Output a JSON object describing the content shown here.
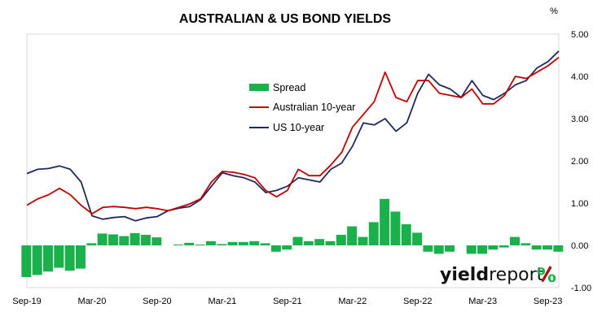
{
  "chart_data": {
    "type": "line",
    "title": "AUSTRALIAN & US BOND YIELDS",
    "y_unit_label": "%",
    "ylim": [
      -1.0,
      5.0
    ],
    "y_ticks": [
      "5.00",
      "4.00",
      "3.00",
      "2.00",
      "1.00",
      "0.00",
      "-1.00"
    ],
    "x_ticks": [
      "Sep-19",
      "Mar-20",
      "Sep-20",
      "Mar-21",
      "Sep-21",
      "Mar-22",
      "Sep-22",
      "Mar-23",
      "Sep-23"
    ],
    "xlim": [
      "2019-09",
      "2023-10"
    ],
    "legend": {
      "placement": "upper-left-center",
      "entries": [
        "Spread",
        "Australian 10-year",
        "US 10-year"
      ]
    },
    "series": [
      {
        "name": "Australian 10-year",
        "color": "#c00000",
        "x": [
          "2019-09",
          "2019-10",
          "2019-11",
          "2019-12",
          "2020-01",
          "2020-02",
          "2020-03",
          "2020-04",
          "2020-05",
          "2020-06",
          "2020-07",
          "2020-08",
          "2020-09",
          "2020-10",
          "2020-11",
          "2020-12",
          "2021-01",
          "2021-02",
          "2021-03",
          "2021-04",
          "2021-05",
          "2021-06",
          "2021-07",
          "2021-08",
          "2021-09",
          "2021-10",
          "2021-11",
          "2021-12",
          "2022-01",
          "2022-02",
          "2022-03",
          "2022-04",
          "2022-05",
          "2022-06",
          "2022-07",
          "2022-08",
          "2022-09",
          "2022-10",
          "2022-11",
          "2022-12",
          "2023-01",
          "2023-02",
          "2023-03",
          "2023-04",
          "2023-05",
          "2023-06",
          "2023-07",
          "2023-08",
          "2023-09",
          "2023-10"
        ],
        "values": [
          0.95,
          1.1,
          1.2,
          1.35,
          1.2,
          0.95,
          0.75,
          0.9,
          0.92,
          0.9,
          0.87,
          0.9,
          0.87,
          0.82,
          0.9,
          0.98,
          1.1,
          1.5,
          1.75,
          1.73,
          1.68,
          1.6,
          1.3,
          1.15,
          1.3,
          1.8,
          1.65,
          1.65,
          1.9,
          2.2,
          2.8,
          3.1,
          3.4,
          4.1,
          3.5,
          3.4,
          3.9,
          3.9,
          3.6,
          3.55,
          3.5,
          3.7,
          3.35,
          3.35,
          3.55,
          4.0,
          3.95,
          4.1,
          4.25,
          4.45
        ]
      },
      {
        "name": "US 10-year",
        "color": "#1f2a5a",
        "x": [
          "2019-09",
          "2019-10",
          "2019-11",
          "2019-12",
          "2020-01",
          "2020-02",
          "2020-03",
          "2020-04",
          "2020-05",
          "2020-06",
          "2020-07",
          "2020-08",
          "2020-09",
          "2020-10",
          "2020-11",
          "2020-12",
          "2021-01",
          "2021-02",
          "2021-03",
          "2021-04",
          "2021-05",
          "2021-06",
          "2021-07",
          "2021-08",
          "2021-09",
          "2021-10",
          "2021-11",
          "2021-12",
          "2022-01",
          "2022-02",
          "2022-03",
          "2022-04",
          "2022-05",
          "2022-06",
          "2022-07",
          "2022-08",
          "2022-09",
          "2022-10",
          "2022-11",
          "2022-12",
          "2023-01",
          "2023-02",
          "2023-03",
          "2023-04",
          "2023-05",
          "2023-06",
          "2023-07",
          "2023-08",
          "2023-09",
          "2023-10"
        ],
        "values": [
          1.7,
          1.8,
          1.82,
          1.88,
          1.8,
          1.5,
          0.7,
          0.62,
          0.66,
          0.68,
          0.58,
          0.65,
          0.68,
          0.82,
          0.88,
          0.92,
          1.08,
          1.4,
          1.72,
          1.65,
          1.6,
          1.5,
          1.25,
          1.3,
          1.4,
          1.6,
          1.55,
          1.5,
          1.8,
          1.95,
          2.35,
          2.9,
          2.85,
          3.0,
          2.7,
          2.9,
          3.6,
          4.05,
          3.8,
          3.7,
          3.5,
          3.9,
          3.55,
          3.45,
          3.6,
          3.8,
          3.9,
          4.2,
          4.35,
          4.6
        ]
      },
      {
        "name": "Spread",
        "type": "bar",
        "color": "#1ab04c",
        "x": [
          "2019-09",
          "2019-10",
          "2019-11",
          "2019-12",
          "2020-01",
          "2020-02",
          "2020-03",
          "2020-04",
          "2020-05",
          "2020-06",
          "2020-07",
          "2020-08",
          "2020-09",
          "2020-10",
          "2020-11",
          "2020-12",
          "2021-01",
          "2021-02",
          "2021-03",
          "2021-04",
          "2021-05",
          "2021-06",
          "2021-07",
          "2021-08",
          "2021-09",
          "2021-10",
          "2021-11",
          "2021-12",
          "2022-01",
          "2022-02",
          "2022-03",
          "2022-04",
          "2022-05",
          "2022-06",
          "2022-07",
          "2022-08",
          "2022-09",
          "2022-10",
          "2022-11",
          "2022-12",
          "2023-01",
          "2023-02",
          "2023-03",
          "2023-04",
          "2023-05",
          "2023-06",
          "2023-07",
          "2023-08",
          "2023-09",
          "2023-10"
        ],
        "values": [
          -0.75,
          -0.7,
          -0.62,
          -0.53,
          -0.6,
          -0.55,
          0.05,
          0.28,
          0.26,
          0.22,
          0.29,
          0.25,
          0.19,
          0.0,
          0.02,
          0.06,
          0.02,
          0.1,
          0.03,
          0.08,
          0.08,
          0.1,
          0.05,
          -0.15,
          -0.1,
          0.2,
          0.1,
          0.15,
          0.1,
          0.25,
          0.45,
          0.2,
          0.55,
          1.1,
          0.8,
          0.5,
          0.3,
          -0.15,
          -0.2,
          -0.15,
          0.0,
          -0.2,
          -0.2,
          -0.1,
          -0.05,
          0.2,
          0.05,
          -0.1,
          -0.1,
          -0.15
        ]
      }
    ],
    "grid": {
      "x": false,
      "y": false
    },
    "watermark": {
      "part1": "yield",
      "part2": "report",
      "symbol": "%"
    }
  }
}
